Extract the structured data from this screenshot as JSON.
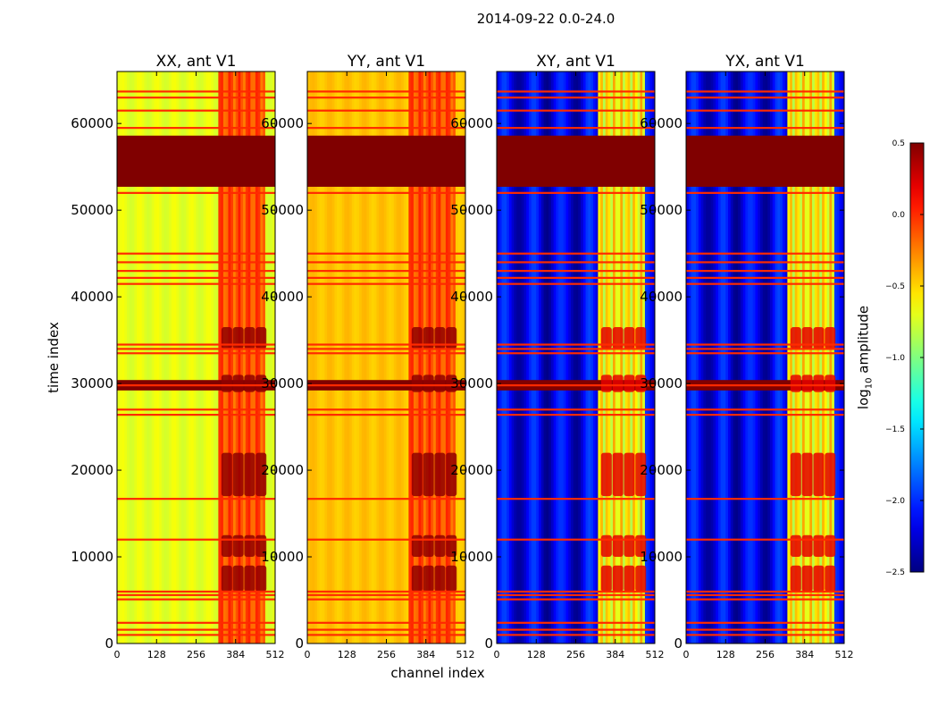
{
  "chart_data": {
    "type": "heatmap",
    "title": "2014-09-22 0.0-24.0",
    "xlabel": "channel index",
    "ylabel": "time index",
    "colorbar_label_prefix": "log",
    "colorbar_label_sub": "10",
    "colorbar_label_suffix": " amplitude",
    "xlim": [
      0,
      512
    ],
    "ylim": [
      0,
      66000
    ],
    "x_ticks": [
      0,
      128,
      256,
      384,
      512
    ],
    "y_ticks": [
      0,
      10000,
      20000,
      30000,
      40000,
      50000,
      60000
    ],
    "colorbar_range": [
      -2.5,
      0.5
    ],
    "colorbar_ticks": [
      "0.5",
      "0.0",
      "−0.5",
      "−1.0",
      "−1.5",
      "−2.0",
      "−2.5"
    ],
    "colorbar_ticks_values": [
      0.5,
      0.0,
      -0.5,
      -1.0,
      -1.5,
      -2.0,
      -2.5
    ],
    "panels": [
      {
        "name": "XX, ant V1",
        "baseline": -0.7,
        "grad": 0.35
      },
      {
        "name": "YY, ant V1",
        "baseline": -0.45,
        "grad": 0.3
      },
      {
        "name": "XY, ant V1",
        "baseline": -2.2,
        "grad": 0.2
      },
      {
        "name": "YX, ant V1",
        "baseline": -2.2,
        "grad": 0.2
      }
    ],
    "saturated_time_bands": [
      [
        52700,
        58600
      ],
      [
        29200,
        30400
      ]
    ],
    "flag_rows": [
      1000,
      1600,
      2400,
      5100,
      5600,
      6000,
      12000,
      16700,
      26400,
      27000,
      29800,
      33500,
      34000,
      34500,
      41500,
      42200,
      43000,
      44000,
      45000,
      52000,
      59500,
      61500,
      63000,
      63700
    ],
    "bright_channel_range": [
      330,
      480
    ]
  }
}
